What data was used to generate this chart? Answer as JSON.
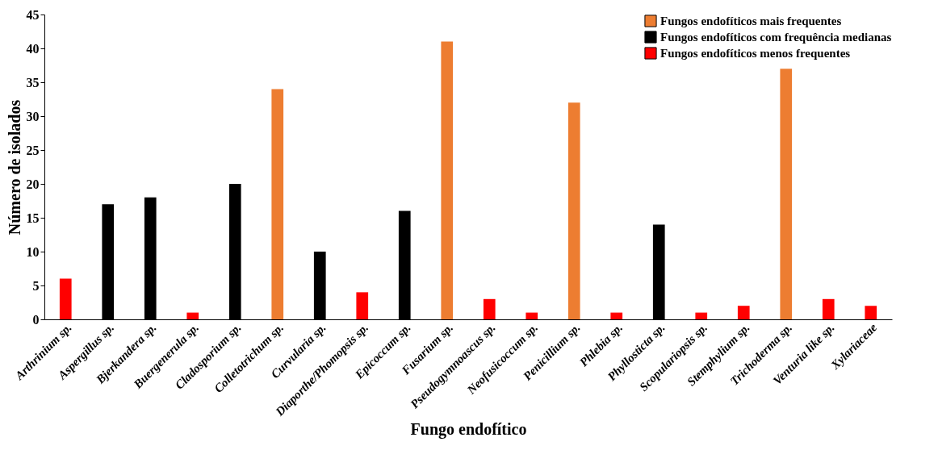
{
  "chart_data": {
    "type": "bar",
    "xlabel": "Fungo endofítico",
    "ylabel": "Número de isolados",
    "categories": [
      "Arthrinium sp.",
      "Aspergillus sp.",
      "Bjerkandera sp.",
      "Buergenerula sp.",
      "Cladosporium sp.",
      "Colletotrichum sp.",
      "Curvularia sp.",
      "Diaporthe/Phomopsis sp.",
      "Epicoccum sp.",
      "Fusarium sp.",
      "Pseudogymnoascus sp.",
      "Neofusicoccum sp.",
      "Penicillium sp.",
      "Phlebia sp.",
      "Phyllosticta sp.",
      "Scopulariopsis  sp.",
      "Stemphylium sp.",
      "Trichoderma sp.",
      "Venturia like sp.",
      "Xylariaceae"
    ],
    "series": [
      {
        "name": "Fungos endofíticos mais frequentes",
        "color": "#ed7d31",
        "values": [
          null,
          null,
          null,
          null,
          null,
          34,
          null,
          null,
          null,
          41,
          null,
          null,
          32,
          null,
          null,
          null,
          null,
          37,
          null,
          null
        ]
      },
      {
        "name": "Fungos endofíticos com frequência medianas",
        "color": "#000000",
        "values": [
          null,
          17,
          18,
          null,
          20,
          null,
          10,
          null,
          16,
          null,
          null,
          null,
          null,
          null,
          14,
          null,
          null,
          null,
          null,
          null
        ]
      },
      {
        "name": "Fungos endofíticos menos frequentes",
        "color": "#ff0000",
        "values": [
          6,
          null,
          null,
          1,
          null,
          null,
          null,
          4,
          null,
          null,
          3,
          1,
          null,
          1,
          null,
          1,
          2,
          null,
          3,
          2
        ]
      }
    ],
    "stacked": true,
    "ylim": [
      0,
      45
    ],
    "yticks": [
      0,
      5,
      10,
      15,
      20,
      25,
      30,
      35,
      40,
      45
    ],
    "grid": false,
    "legend": "top right"
  }
}
